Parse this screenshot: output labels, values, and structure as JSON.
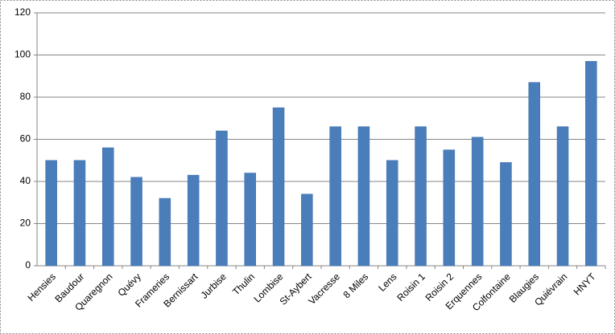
{
  "chart_data": {
    "type": "bar",
    "categories": [
      "Hensies",
      "Baudour",
      "Quaregnon",
      "Quévy",
      "Frameries",
      "Bernissart",
      "Jurbise",
      "Thulin",
      "Lombise",
      "St-Aybert",
      "Vacresse",
      "8 Miles",
      "Lens",
      "Roisin 1",
      "Roisin 2",
      "Erquennes",
      "Colfontaine",
      "Blaugies",
      "Quiévrain",
      "HNYT"
    ],
    "values": [
      50,
      50,
      56,
      42,
      32,
      43,
      64,
      44,
      75,
      34,
      66,
      66,
      50,
      66,
      55,
      61,
      49,
      87,
      66,
      97
    ],
    "color": "#4a7ebb",
    "ylim": [
      0,
      120
    ],
    "yticks": [
      0,
      20,
      40,
      60,
      80,
      100,
      120
    ],
    "grid": true
  }
}
